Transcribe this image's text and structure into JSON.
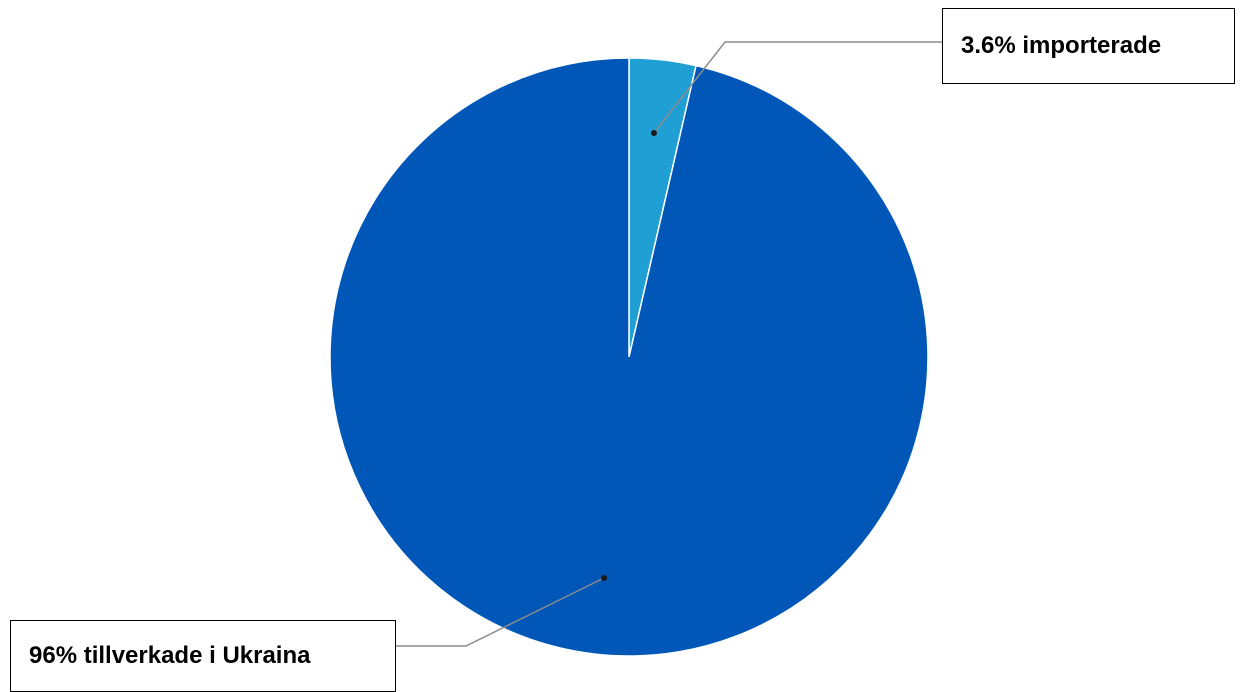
{
  "chart_data": {
    "type": "pie",
    "slices": [
      {
        "label": "importerade",
        "value": 3.6,
        "display_label": "3.6% importerade",
        "color": "#1f9fd3"
      },
      {
        "label": "tillverkade i Ukraina",
        "value": 96.4,
        "display_label": "96% tillverkade i Ukraina",
        "color": "#0057b8"
      }
    ],
    "title": "",
    "legend": "none",
    "start_angle": "top",
    "direction": "clockwise"
  }
}
